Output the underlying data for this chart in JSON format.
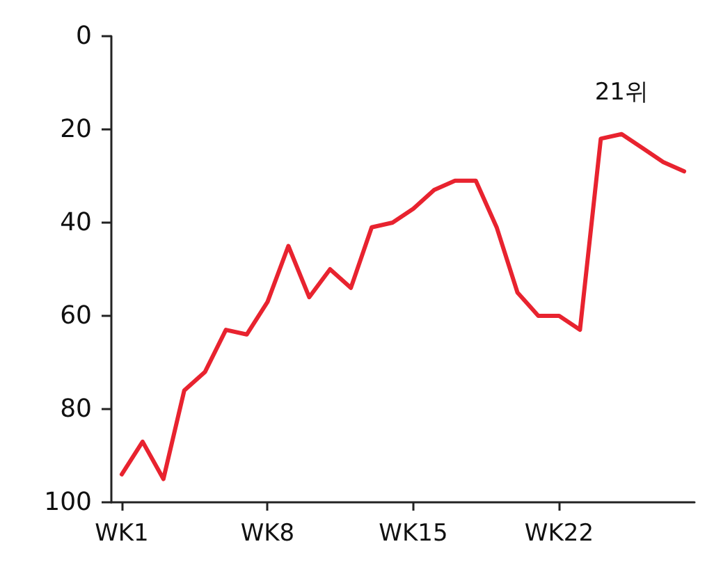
{
  "chart_data": {
    "type": "line",
    "categories": [
      "WK1",
      null,
      null,
      null,
      null,
      null,
      null,
      "WK8",
      null,
      null,
      null,
      null,
      null,
      null,
      "WK15",
      null,
      null,
      null,
      null,
      null,
      null,
      "WK22",
      null,
      null,
      null,
      null,
      null,
      null
    ],
    "values": [
      94,
      87,
      95,
      76,
      72,
      63,
      64,
      57,
      45,
      56,
      50,
      54,
      41,
      40,
      37,
      33,
      31,
      31,
      41,
      55,
      60,
      60,
      63,
      22,
      21,
      24,
      27,
      29
    ],
    "color": "#e8232f",
    "ylim": [
      100,
      0
    ],
    "yticks": [
      0,
      20,
      40,
      60,
      80,
      100
    ],
    "grid": false,
    "marker": "none",
    "line_style": "solid",
    "annotations": [
      {
        "text": "21위",
        "y": 21
      }
    ]
  }
}
